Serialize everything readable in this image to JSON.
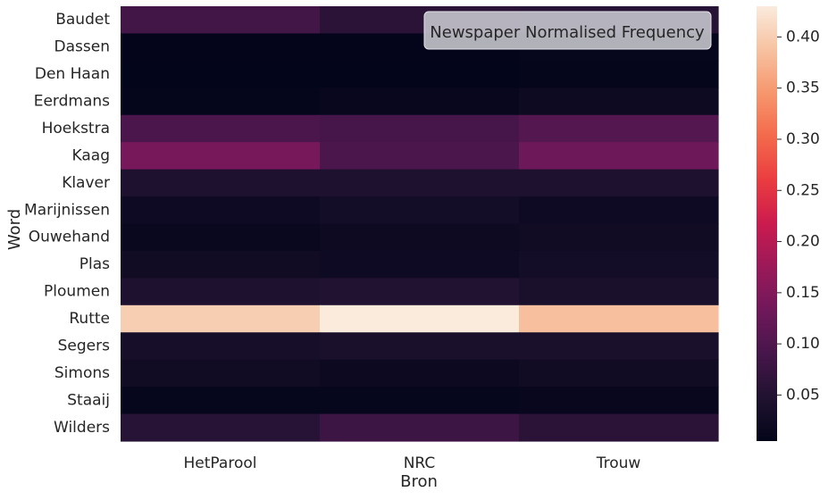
{
  "chart_data": {
    "type": "heatmap",
    "title": "Newspaper Normalised Frequency",
    "xlabel": "Bron",
    "ylabel": "Word",
    "x": [
      "HetParool",
      "NRC",
      "Trouw"
    ],
    "y": [
      "Baudet",
      "Dassen",
      "Den Haan",
      "Eerdmans",
      "Hoekstra",
      "Kaag",
      "Klaver",
      "Marijnissen",
      "Ouwehand",
      "Plas",
      "Ploumen",
      "Rutte",
      "Segers",
      "Simons",
      "Staaij",
      "Wilders"
    ],
    "values": [
      [
        0.085,
        0.06,
        0.055
      ],
      [
        0.006,
        0.006,
        0.01
      ],
      [
        0.005,
        0.005,
        0.008
      ],
      [
        0.008,
        0.012,
        0.02
      ],
      [
        0.095,
        0.09,
        0.105
      ],
      [
        0.14,
        0.095,
        0.13
      ],
      [
        0.045,
        0.045,
        0.045
      ],
      [
        0.022,
        0.03,
        0.022
      ],
      [
        0.015,
        0.02,
        0.025
      ],
      [
        0.025,
        0.022,
        0.03
      ],
      [
        0.045,
        0.05,
        0.04
      ],
      [
        0.4,
        0.43,
        0.385
      ],
      [
        0.035,
        0.04,
        0.04
      ],
      [
        0.025,
        0.018,
        0.025
      ],
      [
        0.01,
        0.01,
        0.012
      ],
      [
        0.055,
        0.08,
        0.06
      ]
    ],
    "colorbar": {
      "min": 0.005,
      "max": 0.43,
      "ticks": [
        0.05,
        0.1,
        0.15,
        0.2,
        0.25,
        0.3,
        0.35,
        0.4
      ],
      "tick_labels": [
        "0.05",
        "0.10",
        "0.15",
        "0.20",
        "0.25",
        "0.30",
        "0.35",
        "0.40"
      ],
      "colormap": "rocket"
    },
    "legend_placement": "top-right"
  }
}
